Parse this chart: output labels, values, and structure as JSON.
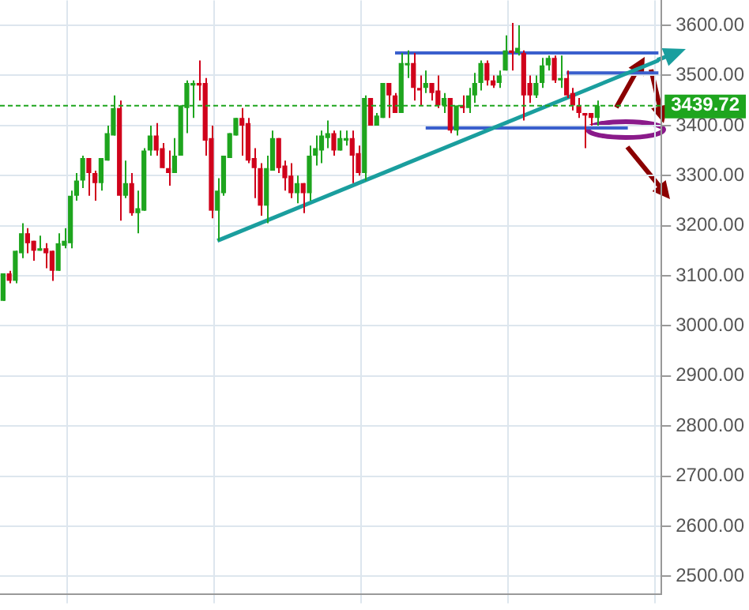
{
  "chart_data": {
    "type": "candlestick",
    "categories": [
      null,
      null,
      null,
      null,
      null,
      null,
      null,
      null,
      null,
      null,
      null,
      null,
      null,
      null,
      null,
      null,
      null,
      null,
      null,
      null,
      null,
      null,
      null,
      null,
      null,
      null,
      null,
      null,
      null,
      null,
      null,
      null,
      null,
      null,
      null,
      null,
      null,
      null,
      null,
      null,
      null,
      null,
      null,
      null,
      null,
      null,
      null,
      null,
      null,
      null,
      null,
      null,
      null,
      null,
      null,
      null,
      null,
      null,
      null,
      null,
      null,
      null,
      null,
      null,
      null,
      null,
      null,
      null,
      null,
      null,
      null,
      null,
      null,
      null,
      null,
      null,
      null,
      null,
      null,
      null,
      null,
      null,
      null,
      null,
      null,
      null,
      null,
      null,
      null,
      null,
      null,
      null,
      null,
      null,
      null,
      null,
      null,
      null,
      null,
      null,
      null,
      null,
      null,
      null,
      null,
      null,
      null,
      null
    ],
    "ohlc": [
      [
        3050,
        3105,
        3050,
        3105
      ],
      [
        3105,
        3110,
        3085,
        3090
      ],
      [
        3090,
        3150,
        3085,
        3150
      ],
      [
        3145,
        3205,
        3135,
        3185
      ],
      [
        3185,
        3195,
        3145,
        3165
      ],
      [
        3170,
        3170,
        3130,
        3150
      ],
      [
        3150,
        3180,
        3150,
        3155
      ],
      [
        3155,
        3165,
        3115,
        3145
      ],
      [
        3150,
        3150,
        3090,
        3110
      ],
      [
        3110,
        3185,
        3110,
        3165
      ],
      [
        3160,
        3195,
        3155,
        3170
      ],
      [
        3165,
        3270,
        3155,
        3260
      ],
      [
        3260,
        3305,
        3250,
        3290
      ],
      [
        3290,
        3340,
        3275,
        3335
      ],
      [
        3335,
        3335,
        3260,
        3305
      ],
      [
        3305,
        3310,
        3250,
        3285
      ],
      [
        3285,
        3335,
        3270,
        3335
      ],
      [
        3330,
        3400,
        3330,
        3385
      ],
      [
        3380,
        3460,
        3380,
        3435
      ],
      [
        3435,
        3450,
        3210,
        3260
      ],
      [
        3260,
        3330,
        3255,
        3285
      ],
      [
        3285,
        3305,
        3220,
        3225
      ],
      [
        3225,
        3270,
        3185,
        3235
      ],
      [
        3230,
        3355,
        3230,
        3350
      ],
      [
        3350,
        3400,
        3340,
        3380
      ],
      [
        3380,
        3405,
        3340,
        3350
      ],
      [
        3355,
        3365,
        3315,
        3315
      ],
      [
        3315,
        3350,
        3280,
        3305
      ],
      [
        3305,
        3375,
        3305,
        3340
      ],
      [
        3340,
        3440,
        3340,
        3440
      ],
      [
        3435,
        3490,
        3385,
        3485
      ],
      [
        3480,
        3490,
        3415,
        3485
      ],
      [
        3485,
        3530,
        3450,
        3480
      ],
      [
        3485,
        3495,
        3340,
        3370
      ],
      [
        3375,
        3400,
        3215,
        3230
      ],
      [
        3230,
        3295,
        3170,
        3270
      ],
      [
        3265,
        3340,
        3260,
        3340
      ],
      [
        3335,
        3385,
        3335,
        3385
      ],
      [
        3380,
        3415,
        3380,
        3415
      ],
      [
        3415,
        3435,
        3340,
        3400
      ],
      [
        3405,
        3415,
        3325,
        3330
      ],
      [
        3335,
        3355,
        3255,
        3315
      ],
      [
        3315,
        3325,
        3220,
        3240
      ],
      [
        3240,
        3340,
        3205,
        3315
      ],
      [
        3310,
        3390,
        3310,
        3375
      ],
      [
        3375,
        3375,
        3305,
        3315
      ],
      [
        3320,
        3330,
        3270,
        3295
      ],
      [
        3300,
        3325,
        3255,
        3265
      ],
      [
        3265,
        3300,
        3245,
        3285
      ],
      [
        3285,
        3285,
        3225,
        3265
      ],
      [
        3265,
        3360,
        3250,
        3340
      ],
      [
        3340,
        3380,
        3320,
        3355
      ],
      [
        3350,
        3390,
        3325,
        3380
      ],
      [
        3375,
        3410,
        3355,
        3385
      ],
      [
        3385,
        3390,
        3340,
        3350
      ],
      [
        3350,
        3390,
        3350,
        3375
      ],
      [
        3370,
        3390,
        3360,
        3375
      ],
      [
        3375,
        3390,
        3285,
        3340
      ],
      [
        3345,
        3360,
        3300,
        3305
      ],
      [
        3305,
        3460,
        3290,
        3455
      ],
      [
        3455,
        3455,
        3400,
        3400
      ],
      [
        3400,
        3425,
        3400,
        3420
      ],
      [
        3415,
        3485,
        3415,
        3485
      ],
      [
        3485,
        3485,
        3415,
        3460
      ],
      [
        3460,
        3465,
        3425,
        3425
      ],
      [
        3425,
        3545,
        3425,
        3525
      ],
      [
        3520,
        3550,
        3495,
        3525
      ],
      [
        3525,
        3545,
        3450,
        3475
      ],
      [
        3475,
        3500,
        3440,
        3470
      ],
      [
        3475,
        3510,
        3465,
        3485
      ],
      [
        3485,
        3485,
        3450,
        3465
      ],
      [
        3470,
        3500,
        3435,
        3440
      ],
      [
        3440,
        3465,
        3425,
        3455
      ],
      [
        3455,
        3455,
        3385,
        3390
      ],
      [
        3390,
        3440,
        3380,
        3440
      ],
      [
        3440,
        3460,
        3425,
        3435
      ],
      [
        3435,
        3475,
        3425,
        3460
      ],
      [
        3460,
        3505,
        3445,
        3485
      ],
      [
        3485,
        3530,
        3470,
        3525
      ],
      [
        3525,
        3530,
        3480,
        3490
      ],
      [
        3490,
        3500,
        3475,
        3480
      ],
      [
        3485,
        3510,
        3475,
        3500
      ],
      [
        3510,
        3580,
        3510,
        3550
      ],
      [
        3550,
        3605,
        3510,
        3545
      ],
      [
        3545,
        3600,
        3540,
        3555
      ],
      [
        3545,
        3550,
        3410,
        3460
      ],
      [
        3485,
        3500,
        3445,
        3460
      ],
      [
        3460,
        3500,
        3455,
        3485
      ],
      [
        3485,
        3535,
        3475,
        3520
      ],
      [
        3520,
        3540,
        3510,
        3535
      ],
      [
        3535,
        3540,
        3485,
        3490
      ],
      [
        3490,
        3540,
        3475,
        3495
      ],
      [
        3495,
        3510,
        3455,
        3460
      ],
      [
        3465,
        3475,
        3430,
        3440
      ],
      [
        3440,
        3455,
        3415,
        3425
      ],
      [
        3425,
        3425,
        3355,
        3420
      ],
      [
        3425,
        3425,
        3400,
        3415
      ],
      [
        3415,
        3450,
        3400,
        3439.72
      ],
      null,
      null,
      null,
      null,
      null,
      null,
      null,
      null,
      null,
      null
    ],
    "colors": [
      "#1ea51e",
      "#d0021b",
      "#1ea51e",
      "#1ea51e",
      "#d0021b",
      "#d0021b",
      "#1ea51e",
      "#d0021b",
      "#d0021b",
      "#1ea51e",
      "#1ea51e",
      "#1ea51e",
      "#1ea51e",
      "#1ea51e",
      "#d0021b",
      "#d0021b",
      "#1ea51e",
      "#1ea51e",
      "#1ea51e",
      "#d0021b",
      "#1ea51e",
      "#d0021b",
      "#1ea51e",
      "#1ea51e",
      "#1ea51e",
      "#d0021b",
      "#d0021b",
      "#d0021b",
      "#1ea51e",
      "#1ea51e",
      "#1ea51e",
      "#1ea51e",
      "#d0021b",
      "#d0021b",
      "#d0021b",
      "#1ea51e",
      "#1ea51e",
      "#1ea51e",
      "#1ea51e",
      "#d0021b",
      "#d0021b",
      "#d0021b",
      "#d0021b",
      "#1ea51e",
      "#1ea51e",
      "#d0021b",
      "#d0021b",
      "#d0021b",
      "#1ea51e",
      "#d0021b",
      "#1ea51e",
      "#1ea51e",
      "#1ea51e",
      "#1ea51e",
      "#d0021b",
      "#1ea51e",
      "#1ea51e",
      "#d0021b",
      "#d0021b",
      "#1ea51e",
      "#d0021b",
      "#1ea51e",
      "#1ea51e",
      "#d0021b",
      "#d0021b",
      "#1ea51e",
      "#1ea51e",
      "#d0021b",
      "#d0021b",
      "#1ea51e",
      "#d0021b",
      "#d0021b",
      "#1ea51e",
      "#d0021b",
      "#1ea51e",
      "#d0021b",
      "#1ea51e",
      "#1ea51e",
      "#1ea51e",
      "#d0021b",
      "#d0021b",
      "#1ea51e",
      "#1ea51e",
      "#d0021b",
      "#1ea51e",
      "#d0021b",
      "#d0021b",
      "#1ea51e",
      "#1ea51e",
      "#1ea51e",
      "#d0021b",
      "#1ea51e",
      "#d0021b",
      "#d0021b",
      "#d0021b",
      "#d0021b",
      "#d0021b",
      "#1ea51e",
      null,
      null,
      null,
      null,
      null,
      null,
      null,
      null,
      null,
      null
    ],
    "series": [
      {
        "type": "line",
        "color": "#1a9e9e",
        "values": [
          null,
          null,
          null,
          null,
          null,
          null,
          null,
          null,
          null,
          null,
          null,
          null,
          null,
          null,
          null,
          null,
          null,
          null,
          null,
          null,
          null,
          null,
          null,
          null,
          null,
          null,
          null,
          null,
          null,
          null,
          null,
          null,
          null,
          null,
          null,
          3170,
          null,
          null,
          null,
          null,
          null,
          null,
          null,
          null,
          null,
          null,
          null,
          null,
          null,
          null,
          null,
          null,
          null,
          null,
          null,
          null,
          null,
          null,
          null,
          null,
          null,
          null,
          null,
          null,
          null,
          null,
          null,
          null,
          null,
          null,
          null,
          null,
          null,
          null,
          null,
          null,
          null,
          null,
          null,
          null,
          null,
          null,
          null,
          null,
          null,
          null,
          null,
          null,
          null,
          null,
          null,
          null,
          null,
          null,
          null,
          null,
          null,
          null,
          null,
          null,
          null,
          null,
          null,
          null,
          null,
          null,
          null,
          3530
        ]
      },
      {
        "type": "line",
        "color": "#3a5fcd",
        "values": [
          null,
          null,
          null,
          null,
          null,
          null,
          null,
          null,
          null,
          null,
          null,
          null,
          null,
          null,
          null,
          null,
          null,
          null,
          null,
          null,
          null,
          null,
          null,
          null,
          null,
          null,
          null,
          null,
          null,
          null,
          null,
          null,
          null,
          null,
          null,
          null,
          null,
          null,
          null,
          null,
          null,
          null,
          null,
          null,
          null,
          null,
          null,
          null,
          null,
          null,
          null,
          null,
          null,
          null,
          null,
          null,
          null,
          null,
          null,
          null,
          null,
          null,
          null,
          null,
          3545,
          3545,
          3545,
          3545,
          3545,
          3545,
          3545,
          3545,
          3545,
          3545,
          3545,
          3545,
          3545,
          3545,
          3545,
          3545,
          3545,
          3545,
          3545,
          3545,
          3545,
          3545,
          3545,
          3545,
          3545,
          3545,
          3545,
          3545,
          3545,
          3545,
          3545,
          3545,
          3545,
          3545,
          3545,
          3545,
          3545,
          3545,
          3545,
          3545,
          3545,
          3545,
          3545,
          3545
        ]
      },
      {
        "type": "line",
        "color": "#3a5fcd",
        "values": [
          null,
          null,
          null,
          null,
          null,
          null,
          null,
          null,
          null,
          null,
          null,
          null,
          null,
          null,
          null,
          null,
          null,
          null,
          null,
          null,
          null,
          null,
          null,
          null,
          null,
          null,
          null,
          null,
          null,
          null,
          null,
          null,
          null,
          null,
          null,
          null,
          null,
          null,
          null,
          null,
          null,
          null,
          null,
          null,
          null,
          null,
          null,
          null,
          null,
          null,
          null,
          null,
          null,
          null,
          null,
          null,
          null,
          null,
          null,
          null,
          null,
          null,
          null,
          null,
          null,
          null,
          null,
          null,
          null,
          null,
          null,
          null,
          null,
          null,
          null,
          null,
          null,
          null,
          null,
          null,
          null,
          null,
          null,
          null,
          null,
          null,
          null,
          null,
          null,
          null,
          null,
          null,
          3505,
          3505,
          3505,
          3505,
          3505,
          3505,
          3505,
          3505,
          3505,
          3505,
          3505,
          3505,
          3505,
          3505,
          3505,
          3505
        ]
      },
      {
        "type": "line",
        "color": "#3a5fcd",
        "values": [
          null,
          null,
          null,
          null,
          null,
          null,
          null,
          null,
          null,
          null,
          null,
          null,
          null,
          null,
          null,
          null,
          null,
          null,
          null,
          null,
          null,
          null,
          null,
          null,
          null,
          null,
          null,
          null,
          null,
          null,
          null,
          null,
          null,
          null,
          null,
          null,
          null,
          null,
          null,
          null,
          null,
          null,
          null,
          null,
          null,
          null,
          null,
          null,
          null,
          null,
          null,
          null,
          null,
          null,
          null,
          null,
          null,
          null,
          null,
          null,
          null,
          null,
          null,
          null,
          null,
          null,
          null,
          null,
          null,
          3395,
          3395,
          3395,
          3395,
          3395,
          3395,
          3395,
          3395,
          3395,
          3395,
          3395,
          3395,
          3395,
          3395,
          3395,
          3395,
          3395,
          3395,
          3395,
          3395,
          3395,
          3395,
          3395,
          3395,
          3395,
          3395,
          3395,
          3395,
          3395,
          3395,
          3395,
          3395,
          3395,
          3395,
          null,
          null,
          null,
          null,
          null
        ]
      }
    ],
    "ylim": [
      2465,
      3650
    ],
    "yticks": [
      {
        "value": 2500,
        "label": "2500.00"
      },
      {
        "value": 2600,
        "label": "2600.00"
      },
      {
        "value": 2700,
        "label": "2700.00"
      },
      {
        "value": 2800,
        "label": "2800.00"
      },
      {
        "value": 2900,
        "label": "2900.00"
      },
      {
        "value": 3000,
        "label": "3000.00"
      },
      {
        "value": 3100,
        "label": "3100.00"
      },
      {
        "value": 3200,
        "label": "3200.00"
      },
      {
        "value": 3300,
        "label": "3300.00"
      },
      {
        "value": 3400,
        "label": "3400.00"
      },
      {
        "value": 3500,
        "label": "3500.00"
      },
      {
        "value": 3600,
        "label": "3600.00"
      }
    ],
    "ref_lines": [
      {
        "axis": "y",
        "value": 3439.72,
        "label": "3439.72",
        "color": "#1ea51e",
        "line_style": "dashed"
      }
    ],
    "grid": true,
    "tick_labels": "y",
    "legend": false
  }
}
